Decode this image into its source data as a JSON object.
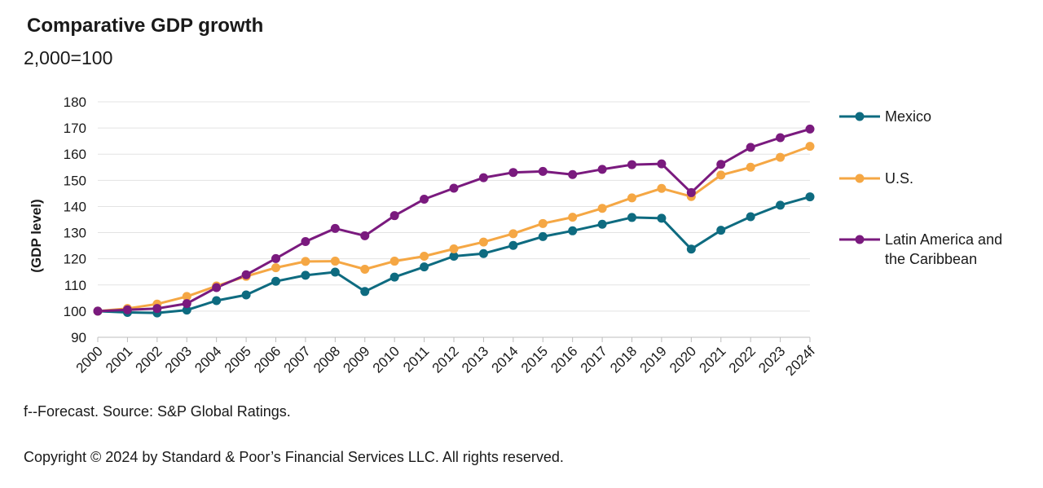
{
  "title": "Comparative GDP growth",
  "subtitle": "2,000=100",
  "footnote": "f--Forecast. Source: S&P Global Ratings.",
  "copyright": "Copyright © 2024 by Standard & Poor’s Financial Services LLC. All rights reserved.",
  "chart_data": {
    "type": "line",
    "ylabel": "(GDP level)",
    "xlabel": "",
    "ylim": [
      90,
      180
    ],
    "yticks": [
      90,
      100,
      110,
      120,
      130,
      140,
      150,
      160,
      170,
      180
    ],
    "grid": true,
    "legend_position": "right",
    "x": [
      "2000",
      "2001",
      "2002",
      "2003",
      "2004",
      "2005",
      "2006",
      "2007",
      "2008",
      "2009",
      "2010",
      "2011",
      "2012",
      "2013",
      "2014",
      "2015",
      "2016",
      "2017",
      "2018",
      "2019",
      "2020",
      "2021",
      "2022",
      "2023",
      "2024f"
    ],
    "series": [
      {
        "name": "Mexico",
        "legend_lines": [
          "Mexico"
        ],
        "color": "#0e6b80",
        "values": [
          100,
          99.5,
          99.3,
          100.4,
          104,
          106.2,
          111.4,
          113.7,
          114.9,
          107.5,
          113,
          116.9,
          121,
          122,
          125.1,
          128.5,
          130.7,
          133.2,
          135.8,
          135.5,
          123.7,
          130.9,
          136.1,
          140.5,
          143.7
        ]
      },
      {
        "name": "U.S.",
        "legend_lines": [
          "U.S."
        ],
        "color": "#f5a744",
        "values": [
          100,
          101,
          102.7,
          105.6,
          109.6,
          113.3,
          116.6,
          119,
          119.1,
          116,
          119.1,
          121,
          123.8,
          126.4,
          129.6,
          133.5,
          135.9,
          139.3,
          143.3,
          146.9,
          143.8,
          152,
          155,
          158.8,
          163
        ]
      },
      {
        "name": "Latin America and the Caribbean",
        "legend_lines": [
          "Latin America and",
          "the Caribbean"
        ],
        "color": "#7a1a7e",
        "values": [
          100,
          100.5,
          101,
          102.9,
          109,
          113.9,
          120.1,
          126.6,
          131.6,
          128.8,
          136.5,
          142.8,
          147,
          151,
          153,
          153.4,
          152.2,
          154.2,
          156,
          156.3,
          145.3,
          156.1,
          162.6,
          166.3,
          169.6
        ]
      }
    ]
  }
}
